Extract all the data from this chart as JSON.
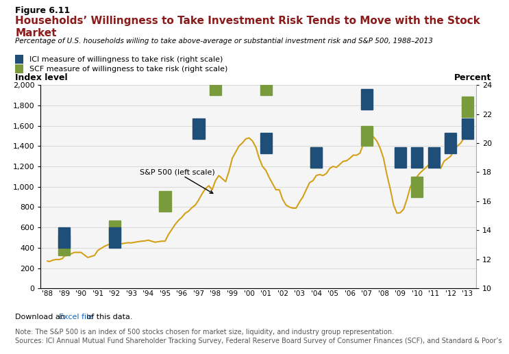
{
  "figure_label": "Figure 6.11",
  "title": "Households’ Willingness to Take Investment Risk Tends to Move with the Stock Market",
  "subtitle": "Percentage of U.S. households willing to take above-average or substantial investment risk and S&P 500, 1988–2013",
  "legend_ici": "ICI measure of willingness to take risk (right scale)",
  "legend_scf": "SCF measure of willingness to take risk (right scale)",
  "ylabel_left": "Index level",
  "ylabel_right": "Percent",
  "annotation": "S&P 500 (left scale)",
  "download_text": "Download an ",
  "download_link": "Excel file",
  "download_suffix": " of this data.",
  "note_line1": "Note: The S&P 500 is an index of 500 stocks chosen for market size, liquidity, and industry group representation.",
  "note_line2": "Sources: ICI Annual Mutual Fund Shareholder Tracking Survey, Federal Reserve Board Survey of Consumer Finances (SCF), and Standard & Poor’s",
  "title_color": "#8B1A1A",
  "ici_color": "#1F4E79",
  "scf_color": "#7A9B3C",
  "sp500_color": "#D4A017",
  "ylim_left": [
    0,
    2000
  ],
  "ylim_right": [
    10,
    24
  ],
  "yticks_left": [
    0,
    200,
    400,
    600,
    800,
    1000,
    1200,
    1400,
    1600,
    1800,
    2000
  ],
  "yticks_right": [
    10,
    12,
    14,
    16,
    18,
    20,
    22,
    24
  ],
  "sp500_years": [
    1988.0,
    1988.1,
    1988.2,
    1988.3,
    1988.5,
    1988.7,
    1988.9,
    1989.0,
    1989.2,
    1989.4,
    1989.6,
    1989.8,
    1990.0,
    1990.2,
    1990.4,
    1990.6,
    1990.8,
    1991.0,
    1991.2,
    1991.4,
    1991.6,
    1991.8,
    1992.0,
    1992.2,
    1992.4,
    1992.6,
    1992.8,
    1993.0,
    1993.2,
    1993.4,
    1993.6,
    1993.8,
    1994.0,
    1994.2,
    1994.4,
    1994.6,
    1994.8,
    1995.0,
    1995.2,
    1995.4,
    1995.6,
    1995.8,
    1996.0,
    1996.2,
    1996.4,
    1996.6,
    1996.8,
    1997.0,
    1997.2,
    1997.4,
    1997.6,
    1997.8,
    1998.0,
    1998.2,
    1998.4,
    1998.6,
    1998.8,
    1999.0,
    1999.2,
    1999.4,
    1999.6,
    1999.8,
    2000.0,
    2000.2,
    2000.4,
    2000.6,
    2000.8,
    2001.0,
    2001.2,
    2001.4,
    2001.6,
    2001.8,
    2002.0,
    2002.2,
    2002.4,
    2002.6,
    2002.8,
    2003.0,
    2003.2,
    2003.4,
    2003.6,
    2003.8,
    2004.0,
    2004.2,
    2004.4,
    2004.6,
    2004.8,
    2005.0,
    2005.2,
    2005.4,
    2005.6,
    2005.8,
    2006.0,
    2006.2,
    2006.4,
    2006.6,
    2006.8,
    2007.0,
    2007.2,
    2007.4,
    2007.6,
    2007.8,
    2008.0,
    2008.2,
    2008.4,
    2008.6,
    2008.8,
    2009.0,
    2009.2,
    2009.4,
    2009.6,
    2009.8,
    2010.0,
    2010.2,
    2010.4,
    2010.6,
    2010.8,
    2011.0,
    2011.2,
    2011.4,
    2011.6,
    2011.8,
    2012.0,
    2012.2,
    2012.4,
    2012.6,
    2012.8,
    2013.0
  ],
  "sp500_values": [
    270,
    265,
    270,
    278,
    285,
    285,
    295,
    320,
    325,
    340,
    355,
    355,
    355,
    330,
    305,
    315,
    325,
    375,
    395,
    415,
    430,
    435,
    435,
    440,
    440,
    445,
    450,
    448,
    455,
    460,
    465,
    468,
    475,
    465,
    455,
    460,
    465,
    465,
    530,
    580,
    630,
    670,
    700,
    740,
    760,
    795,
    820,
    870,
    930,
    980,
    1010,
    970,
    1060,
    1110,
    1080,
    1050,
    1150,
    1280,
    1340,
    1400,
    1430,
    1470,
    1480,
    1450,
    1390,
    1280,
    1200,
    1160,
    1090,
    1030,
    970,
    970,
    875,
    820,
    800,
    790,
    790,
    850,
    900,
    970,
    1040,
    1060,
    1110,
    1120,
    1110,
    1130,
    1180,
    1200,
    1190,
    1220,
    1250,
    1255,
    1280,
    1310,
    1310,
    1330,
    1420,
    1480,
    1520,
    1490,
    1450,
    1380,
    1280,
    1120,
    980,
    820,
    740,
    745,
    780,
    880,
    1000,
    1060,
    1100,
    1140,
    1170,
    1200,
    1230,
    1280,
    1250,
    1180,
    1250,
    1275,
    1300,
    1360,
    1400,
    1430,
    1480,
    1570
  ],
  "ici_years": [
    1989,
    1992,
    1997,
    2001,
    2004,
    2007,
    2009,
    2010,
    2011,
    2012,
    2013
  ],
  "ici_values": [
    13.5,
    13.5,
    21,
    20,
    19,
    23,
    19,
    19,
    19,
    20,
    21
  ],
  "scf_years": [
    1989,
    1992,
    1995,
    1998,
    2001,
    2004,
    2007,
    2010,
    2013
  ],
  "scf_values": [
    13,
    14,
    16,
    24,
    24,
    19,
    20.5,
    17,
    22.5
  ]
}
